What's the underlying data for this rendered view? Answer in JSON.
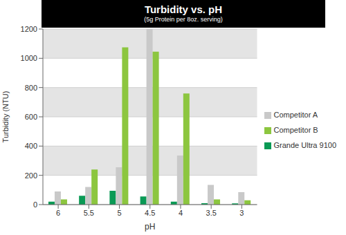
{
  "chart_data": {
    "type": "bar",
    "title": "Turbidity vs. pH",
    "subtitle": "(5g Protein per 8oz. serving)",
    "x_label": "pH",
    "y_label": "Turbidity (NTU)",
    "categories": [
      "6",
      "5.5",
      "5",
      "4.5",
      "4",
      "3.5",
      "3"
    ],
    "series": [
      {
        "name": "Grande Ultra 9100",
        "color": "#0a9a55",
        "values": [
          20,
          60,
          95,
          55,
          20,
          10,
          8
        ]
      },
      {
        "name": "Competitor A",
        "color": "#c9c9c9",
        "values": [
          90,
          120,
          255,
          1200,
          335,
          135,
          85
        ]
      },
      {
        "name": "Competitor B",
        "color": "#8cc63f",
        "values": [
          35,
          240,
          1075,
          1045,
          760,
          35,
          30
        ]
      }
    ],
    "ylim": [
      0,
      1200
    ],
    "yticks": [
      0,
      200,
      400,
      600,
      800,
      1000,
      1200
    ],
    "grid": true,
    "legend": "right"
  }
}
